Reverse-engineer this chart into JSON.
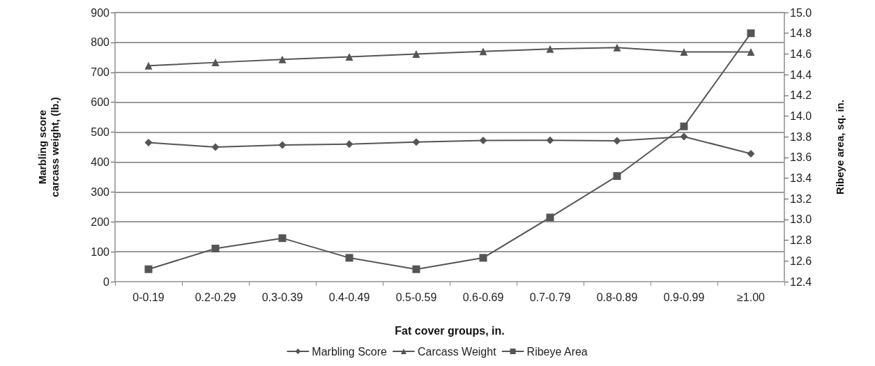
{
  "chart_data": {
    "type": "line",
    "xlabel": "Fat cover groups, in.",
    "ylabel": "Marbling score\ncarcass weight, (lb.)",
    "y2label": "Ribeye area, sq. in.",
    "categories": [
      "0-0.19",
      "0.2-0.29",
      "0.3-0.39",
      "0.4-0.49",
      "0.5-0.59",
      "0.6-0.69",
      "0.7-0.79",
      "0.8-0.89",
      "0.9-0.99",
      "≥1.00"
    ],
    "series": [
      {
        "name": "Marbling Score",
        "color": "#555555",
        "marker": "diamond",
        "values": [
          465,
          450,
          457,
          460,
          467,
          472,
          473,
          471,
          485,
          428
        ]
      },
      {
        "name": "Carcass Weight",
        "color": "#555555",
        "marker": "triangle",
        "values": [
          722,
          733,
          743,
          752,
          761,
          770,
          778,
          783,
          768,
          768
        ]
      },
      {
        "name": "Ribeye Area",
        "color": "#555555",
        "marker": "square",
        "axis": "y2",
        "values": [
          12.52,
          12.72,
          12.82,
          12.63,
          12.52,
          12.63,
          13.02,
          13.42,
          13.9,
          14.8
        ]
      }
    ],
    "ylim": [
      0,
      900
    ],
    "yticks": [
      0,
      100,
      200,
      300,
      400,
      500,
      600,
      700,
      800,
      900
    ],
    "y2lim": [
      12.4,
      15
    ],
    "y2ticks": [
      12.4,
      12.6,
      12.8,
      {
        "value": 13,
        "label": "13.0"
      },
      13.2,
      13.4,
      13.6,
      13.8,
      {
        "value": 14,
        "label": "14.0"
      },
      14.2,
      14.4,
      14.6,
      14.8,
      {
        "value": 15,
        "label": "15.0"
      }
    ],
    "grid": "y",
    "legend": "bottom"
  }
}
